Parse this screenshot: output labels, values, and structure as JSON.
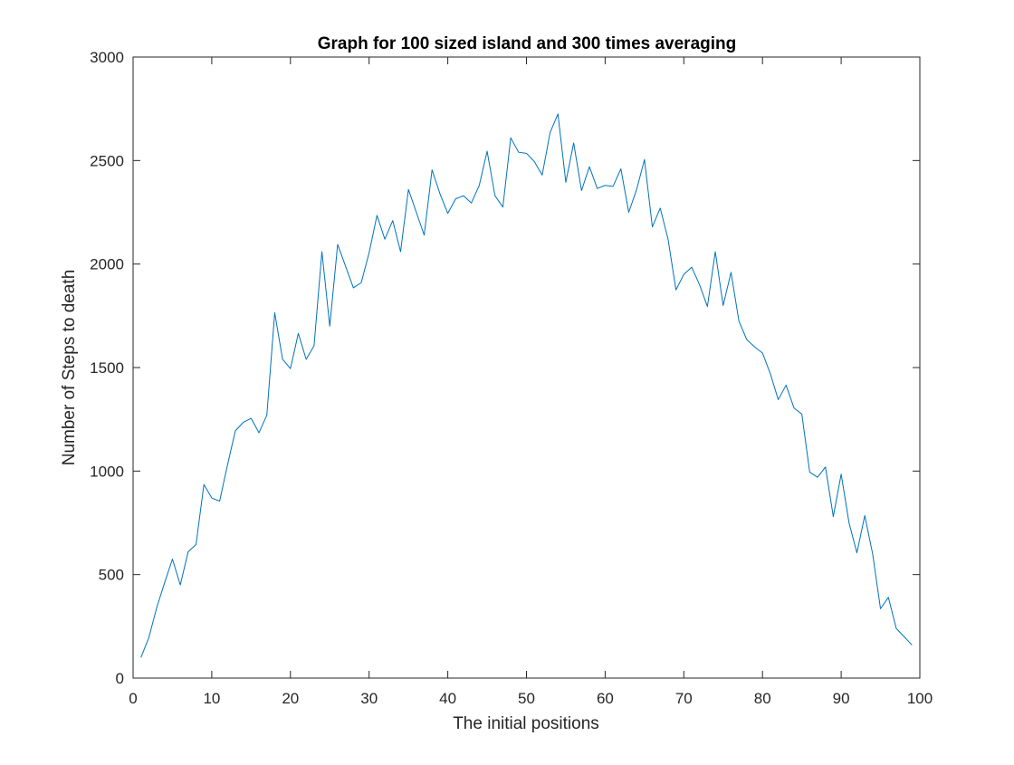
{
  "chart_data": {
    "type": "line",
    "title": "Graph for 100 sized island and 300 times averaging",
    "xlabel": "The initial positions",
    "ylabel": "Number of Steps to death",
    "xlim": [
      0,
      100
    ],
    "ylim": [
      0,
      3000
    ],
    "xticks": [
      0,
      10,
      20,
      30,
      40,
      50,
      60,
      70,
      80,
      90,
      100
    ],
    "yticks": [
      0,
      500,
      1000,
      1500,
      2000,
      2500,
      3000
    ],
    "grid": false,
    "legend": "none",
    "series_color": "#0072BD",
    "x": [
      1,
      2,
      3,
      4,
      5,
      6,
      7,
      8,
      9,
      10,
      11,
      12,
      13,
      14,
      15,
      16,
      17,
      18,
      19,
      20,
      21,
      22,
      23,
      24,
      25,
      26,
      27,
      28,
      29,
      30,
      31,
      32,
      33,
      34,
      35,
      36,
      37,
      38,
      39,
      40,
      41,
      42,
      43,
      44,
      45,
      46,
      47,
      48,
      49,
      50,
      51,
      52,
      53,
      54,
      55,
      56,
      57,
      58,
      59,
      60,
      61,
      62,
      63,
      64,
      65,
      66,
      67,
      68,
      69,
      70,
      71,
      72,
      73,
      74,
      75,
      76,
      77,
      78,
      79,
      80,
      81,
      82,
      83,
      84,
      85,
      86,
      87,
      88,
      89,
      90,
      91,
      92,
      93,
      94,
      95,
      96,
      97,
      98,
      99
    ],
    "series": [
      {
        "values": [
          100,
          195,
          340,
          460,
          575,
          450,
          610,
          645,
          935,
          870,
          855,
          1030,
          1195,
          1235,
          1255,
          1185,
          1270,
          1765,
          1540,
          1495,
          1665,
          1540,
          1605,
          2060,
          1700,
          2095,
          1990,
          1885,
          1910,
          2055,
          2235,
          2120,
          2210,
          2060,
          2360,
          2250,
          2140,
          2455,
          2340,
          2245,
          2315,
          2330,
          2295,
          2380,
          2545,
          2330,
          2275,
          2610,
          2540,
          2535,
          2495,
          2430,
          2635,
          2725,
          2395,
          2585,
          2355,
          2470,
          2365,
          2380,
          2375,
          2460,
          2250,
          2360,
          2505,
          2180,
          2270,
          2120,
          1875,
          1950,
          1985,
          1900,
          1795,
          2060,
          1800,
          1960,
          1725,
          1635,
          1600,
          1570,
          1470,
          1345,
          1415,
          1305,
          1275,
          995,
          970,
          1020,
          780,
          985,
          750,
          605,
          785,
          600,
          335,
          390,
          240,
          200,
          160
        ]
      }
    ]
  }
}
